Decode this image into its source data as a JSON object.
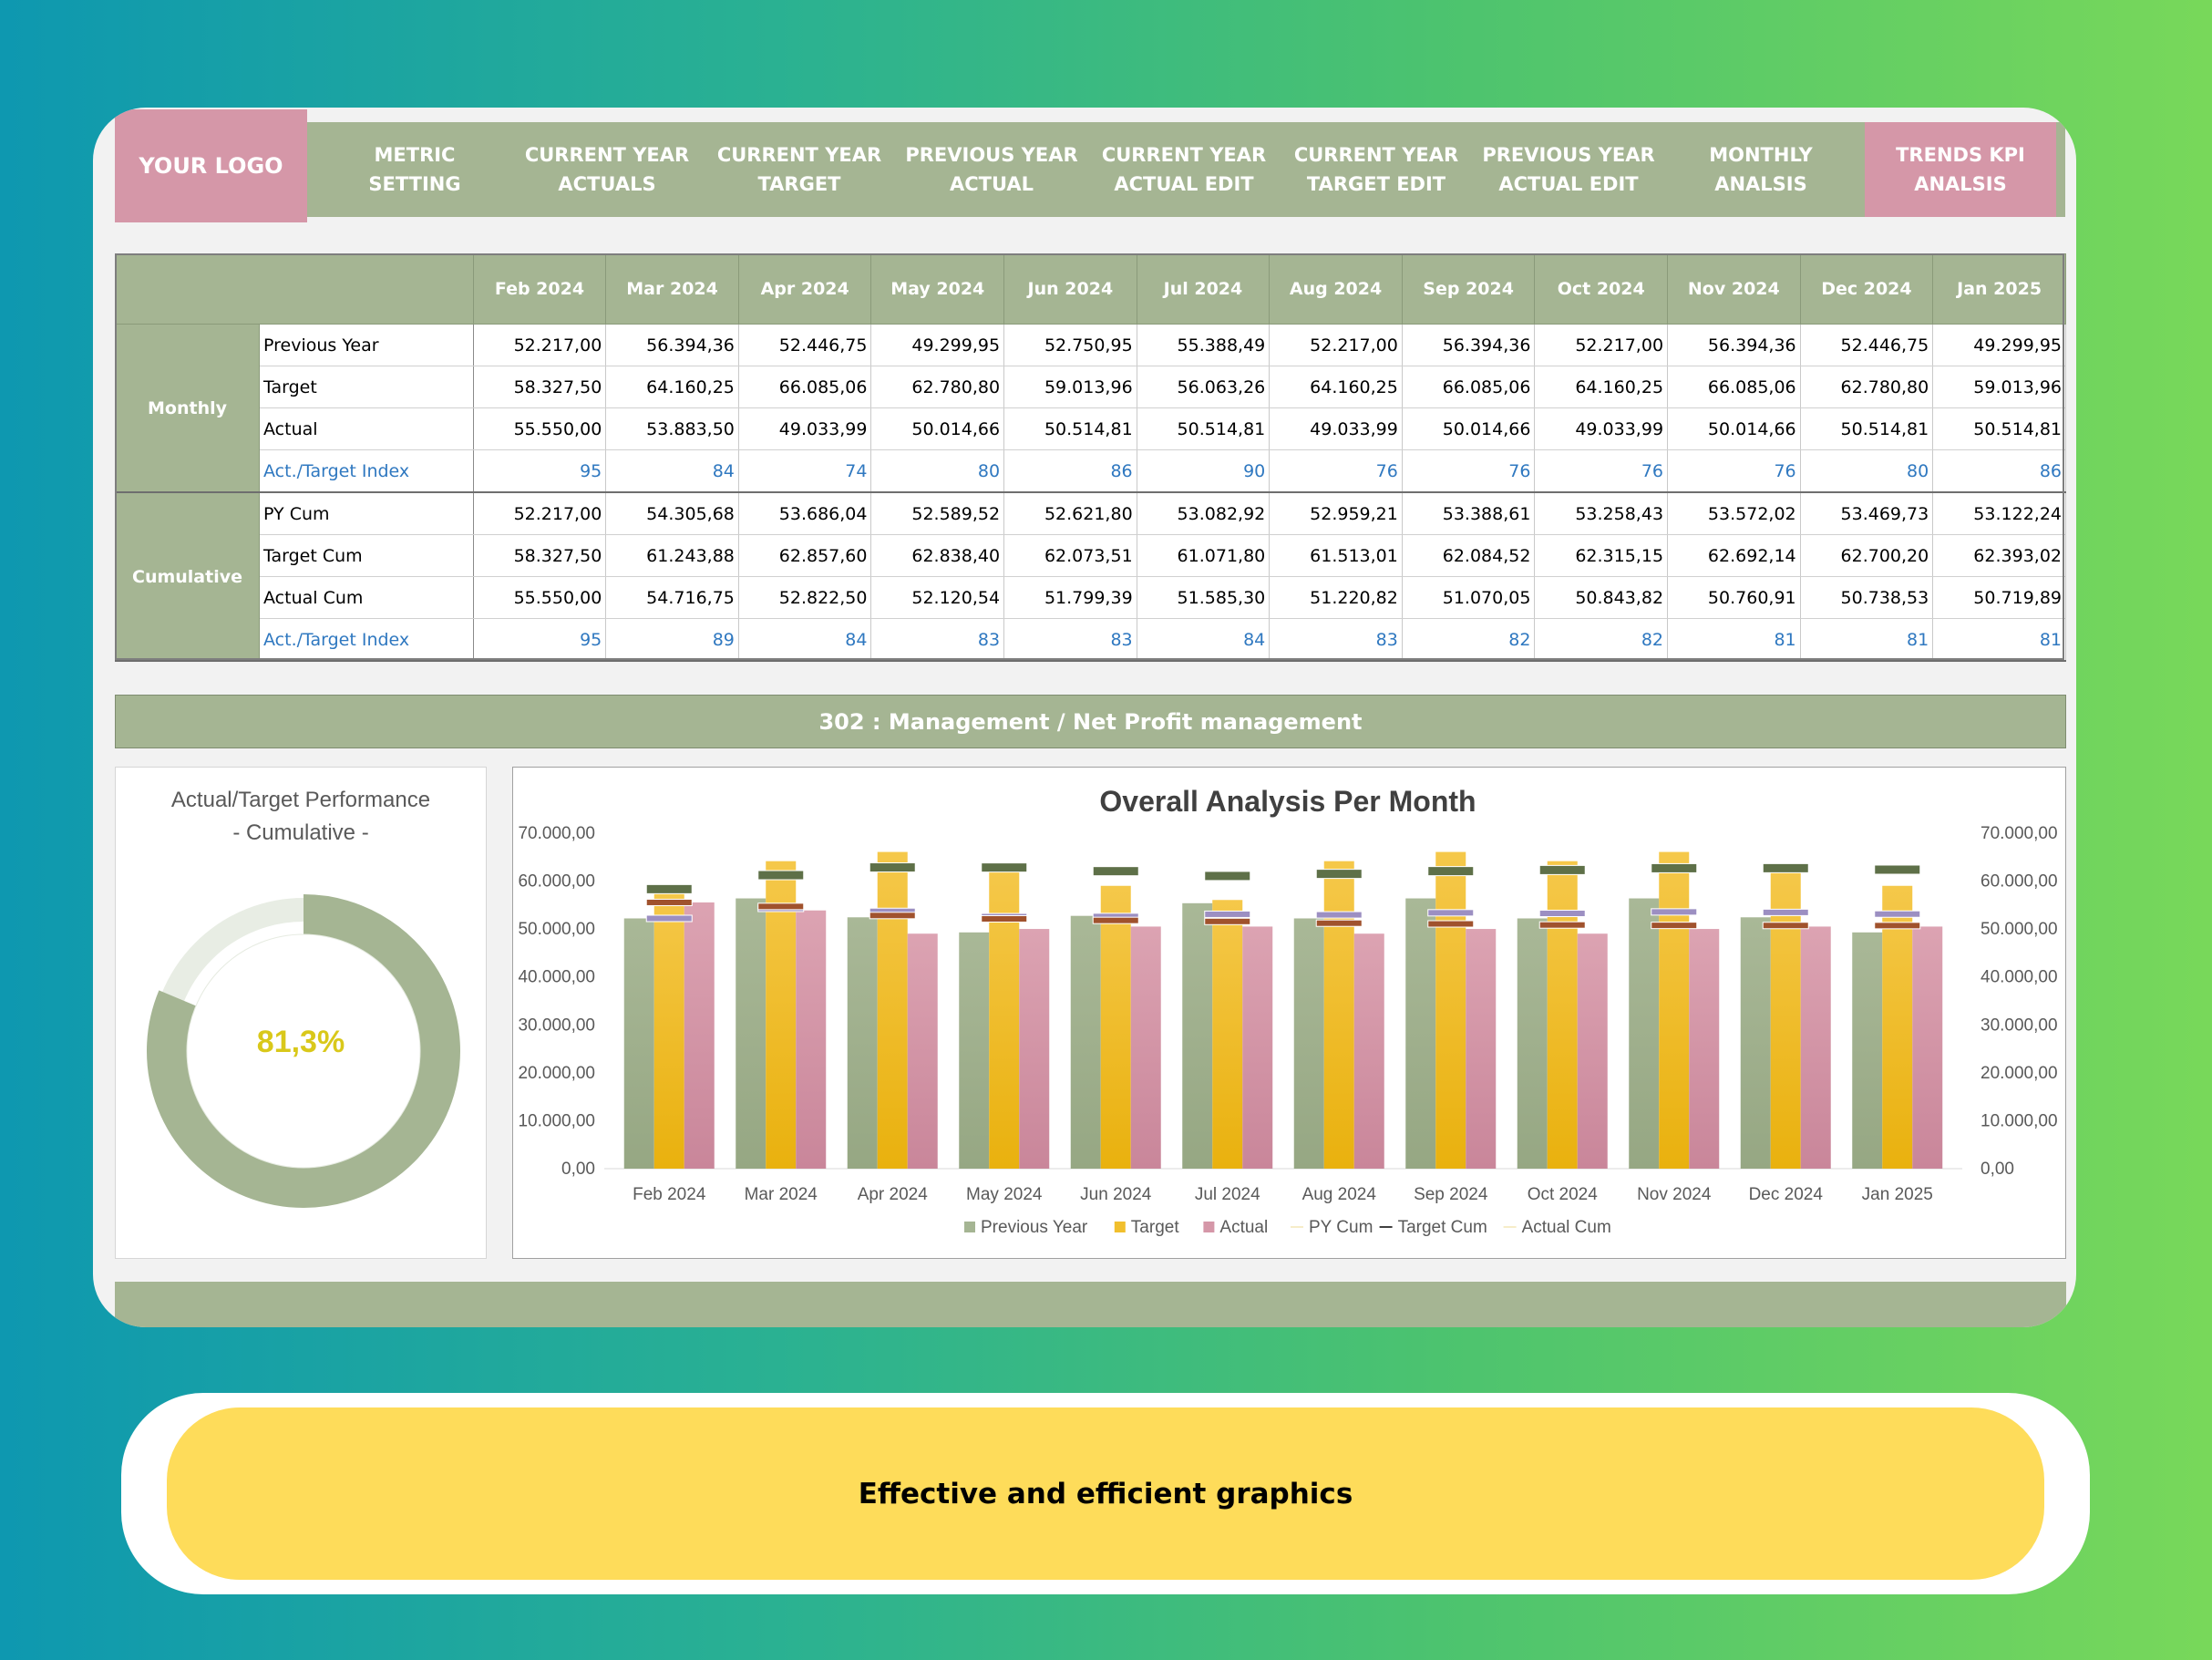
{
  "nav": {
    "logo": "YOUR LOGO",
    "items": [
      {
        "label": "METRIC\nSETTING"
      },
      {
        "label": "CURRENT YEAR\nACTUALS"
      },
      {
        "label": "CURRENT YEAR\nTARGET"
      },
      {
        "label": "PREVIOUS YEAR\nACTUAL"
      },
      {
        "label": "CURRENT YEAR\nACTUAL EDIT"
      },
      {
        "label": "CURRENT YEAR\nTARGET EDIT"
      },
      {
        "label": "PREVIOUS YEAR\nACTUAL EDIT"
      },
      {
        "label": "MONTHLY\nANALSIS"
      },
      {
        "label": "TRENDS KPI\nANALSIS",
        "active": true
      }
    ]
  },
  "table": {
    "months": [
      "Feb 2024",
      "Mar 2024",
      "Apr 2024",
      "May 2024",
      "Jun 2024",
      "Jul 2024",
      "Aug 2024",
      "Sep 2024",
      "Oct 2024",
      "Nov 2024",
      "Dec 2024",
      "Jan 2025"
    ],
    "groups": [
      {
        "name": "Monthly",
        "rows": [
          {
            "label": "Previous Year",
            "values": [
              "52.217,00",
              "56.394,36",
              "52.446,75",
              "49.299,95",
              "52.750,95",
              "55.388,49",
              "52.217,00",
              "56.394,36",
              "52.217,00",
              "56.394,36",
              "52.446,75",
              "49.299,95"
            ]
          },
          {
            "label": "Target",
            "values": [
              "58.327,50",
              "64.160,25",
              "66.085,06",
              "62.780,80",
              "59.013,96",
              "56.063,26",
              "64.160,25",
              "66.085,06",
              "64.160,25",
              "66.085,06",
              "62.780,80",
              "59.013,96"
            ]
          },
          {
            "label": "Actual",
            "values": [
              "55.550,00",
              "53.883,50",
              "49.033,99",
              "50.014,66",
              "50.514,81",
              "50.514,81",
              "49.033,99",
              "50.014,66",
              "49.033,99",
              "50.014,66",
              "50.514,81",
              "50.514,81"
            ]
          },
          {
            "label": "Act./Target Index",
            "index": true,
            "values": [
              "95",
              "84",
              "74",
              "80",
              "86",
              "90",
              "76",
              "76",
              "76",
              "76",
              "80",
              "86"
            ]
          }
        ]
      },
      {
        "name": "Cumulative",
        "rows": [
          {
            "label": "PY Cum",
            "values": [
              "52.217,00",
              "54.305,68",
              "53.686,04",
              "52.589,52",
              "52.621,80",
              "53.082,92",
              "52.959,21",
              "53.388,61",
              "53.258,43",
              "53.572,02",
              "53.469,73",
              "53.122,24"
            ]
          },
          {
            "label": "Target Cum",
            "values": [
              "58.327,50",
              "61.243,88",
              "62.857,60",
              "62.838,40",
              "62.073,51",
              "61.071,80",
              "61.513,01",
              "62.084,52",
              "62.315,15",
              "62.692,14",
              "62.700,20",
              "62.393,02"
            ]
          },
          {
            "label": "Actual Cum",
            "values": [
              "55.550,00",
              "54.716,75",
              "52.822,50",
              "52.120,54",
              "51.799,39",
              "51.585,30",
              "51.220,82",
              "51.070,05",
              "50.843,82",
              "50.760,91",
              "50.738,53",
              "50.719,89"
            ]
          },
          {
            "label": "Act./Target Index",
            "index": true,
            "values": [
              "95",
              "89",
              "84",
              "83",
              "83",
              "84",
              "83",
              "82",
              "82",
              "81",
              "81",
              "81"
            ]
          }
        ]
      }
    ]
  },
  "metric_title": "302 : Management / Net Profit management",
  "donut": {
    "title_line1": "Actual/Target Performance",
    "title_line2": "- Cumulative -",
    "value_text": "81,3%",
    "fraction": 0.813,
    "color_fill": "#a5b593",
    "color_track": "#e8ede4"
  },
  "chart_data": {
    "type": "bar",
    "title": "Overall Analysis Per Month",
    "categories": [
      "Feb 2024",
      "Mar 2024",
      "Apr 2024",
      "May 2024",
      "Jun 2024",
      "Jul 2024",
      "Aug 2024",
      "Sep 2024",
      "Oct 2024",
      "Nov 2024",
      "Dec 2024",
      "Jan 2025"
    ],
    "ylim": [
      0,
      70000
    ],
    "yticks": [
      "0,00",
      "10.000,00",
      "20.000,00",
      "30.000,00",
      "40.000,00",
      "50.000,00",
      "60.000,00",
      "70.000,00"
    ],
    "series": [
      {
        "name": "Previous Year",
        "kind": "bar",
        "color": "#a5b593",
        "values": [
          52217.0,
          56394.36,
          52446.75,
          49299.95,
          52750.95,
          55388.49,
          52217.0,
          56394.36,
          52217.0,
          56394.36,
          52446.75,
          49299.95
        ]
      },
      {
        "name": "Target",
        "kind": "bar",
        "color": "#f1bf2d",
        "values": [
          58327.5,
          64160.25,
          66085.06,
          62780.8,
          59013.96,
          56063.26,
          64160.25,
          66085.06,
          64160.25,
          66085.06,
          62780.8,
          59013.96
        ]
      },
      {
        "name": "Actual",
        "kind": "bar",
        "color": "#d597a8",
        "values": [
          55550.0,
          53883.5,
          49033.99,
          50014.66,
          50514.81,
          50514.81,
          49033.99,
          50014.66,
          49033.99,
          50014.66,
          50514.81,
          50514.81
        ]
      },
      {
        "name": "PY Cum",
        "kind": "marker",
        "color": "#9c8fc2",
        "values": [
          52217.0,
          54305.68,
          53686.04,
          52589.52,
          52621.8,
          53082.92,
          52959.21,
          53388.61,
          53258.43,
          53572.02,
          53469.73,
          53122.24
        ]
      },
      {
        "name": "Target Cum",
        "kind": "marker",
        "color": "#5e7048",
        "values": [
          58327.5,
          61243.88,
          62857.6,
          62838.4,
          62073.51,
          61071.8,
          61513.01,
          62084.52,
          62315.15,
          62692.14,
          62700.2,
          62393.02
        ]
      },
      {
        "name": "Actual Cum",
        "kind": "marker",
        "color": "#a0522d",
        "values": [
          55550.0,
          54716.75,
          52822.5,
          52120.54,
          51799.39,
          51585.3,
          51220.82,
          51070.05,
          50843.82,
          50760.91,
          50738.53,
          50719.89
        ]
      }
    ],
    "legend_position": "bottom"
  },
  "caption": "Effective and efficient graphics"
}
